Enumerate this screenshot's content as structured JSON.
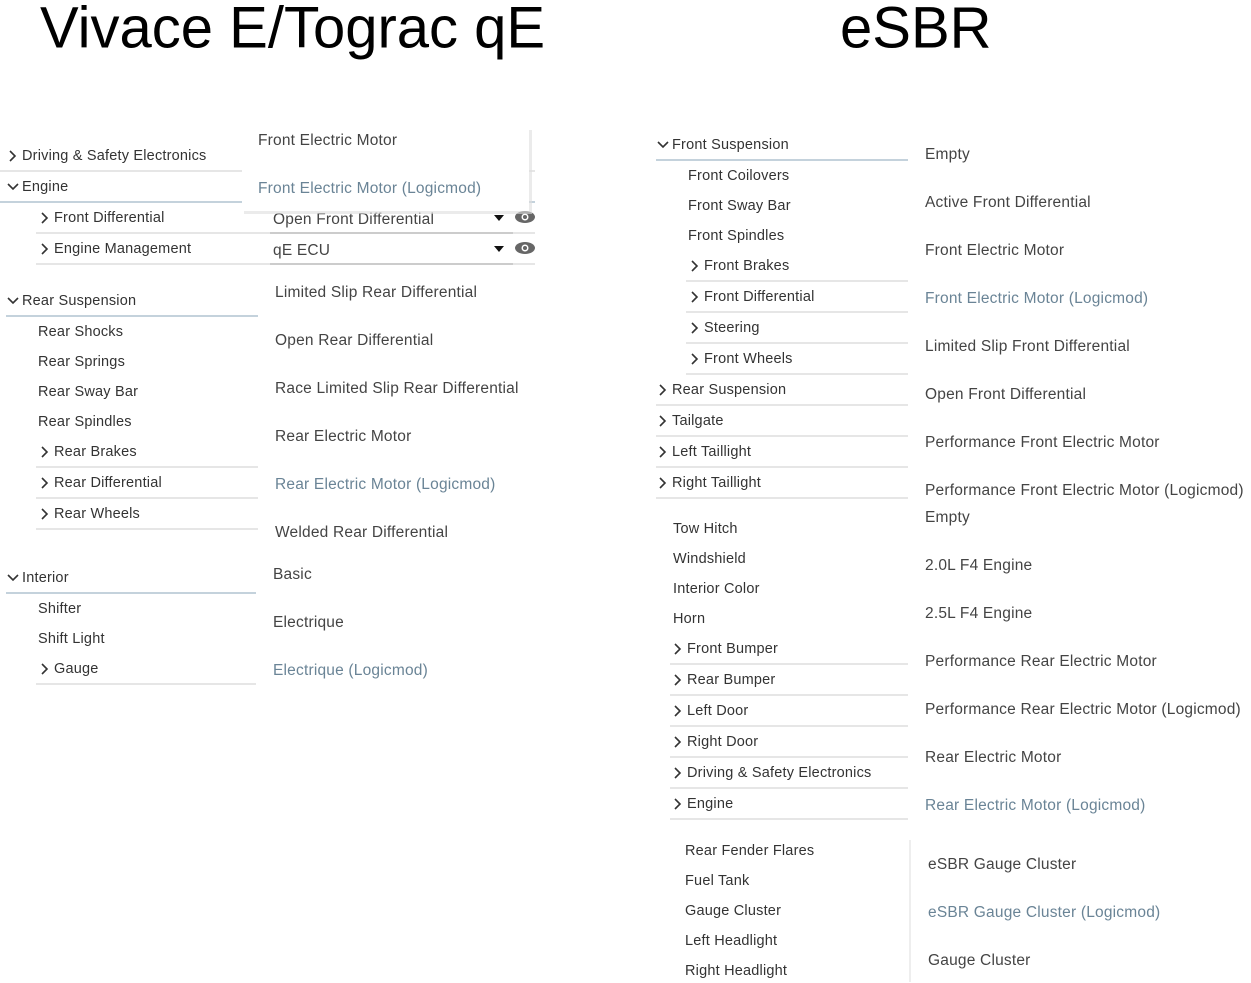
{
  "headers": [
    "Vivace E/Tograc qE",
    "eSBR"
  ],
  "panels": [
    {
      "tree": [
        {
          "label": "Driving & Safety Electronics",
          "level": 0,
          "expandable": true,
          "expanded": false
        },
        {
          "label": "Engine",
          "level": 0,
          "expandable": true,
          "expanded": true
        },
        {
          "label": "Front Differential",
          "level": 1,
          "expandable": true,
          "expanded": false,
          "selected": "Open Front Differential"
        },
        {
          "label": "Engine Management",
          "level": 1,
          "expandable": true,
          "expanded": false,
          "selected": "qE ECU"
        }
      ],
      "dropdown": [
        {
          "label": "Front Electric Motor",
          "highlighted": false
        },
        {
          "label": "Front Electric Motor (Logicmod)",
          "highlighted": true
        }
      ]
    },
    {
      "tree": [
        {
          "label": "Rear Suspension",
          "level": 0,
          "expandable": true,
          "expanded": true
        },
        {
          "label": "Rear Shocks",
          "level": 1,
          "expandable": false,
          "expanded": false
        },
        {
          "label": "Rear Springs",
          "level": 1,
          "expandable": false,
          "expanded": false
        },
        {
          "label": "Rear Sway Bar",
          "level": 1,
          "expandable": false,
          "expanded": false
        },
        {
          "label": "Rear Spindles",
          "level": 1,
          "expandable": false,
          "expanded": false
        },
        {
          "label": "Rear Brakes",
          "level": 1,
          "expandable": true,
          "expanded": false
        },
        {
          "label": "Rear Differential",
          "level": 1,
          "expandable": true,
          "expanded": false
        },
        {
          "label": "Rear Wheels",
          "level": 1,
          "expandable": true,
          "expanded": false
        }
      ],
      "options": [
        {
          "label": "Limited Slip Rear Differential",
          "highlighted": false
        },
        {
          "label": "Open Rear Differential",
          "highlighted": false
        },
        {
          "label": "Race Limited Slip Rear Differential",
          "highlighted": false
        },
        {
          "label": "Rear Electric Motor",
          "highlighted": false
        },
        {
          "label": "Rear Electric Motor (Logicmod)",
          "highlighted": true
        },
        {
          "label": "Welded Rear Differential",
          "highlighted": false
        }
      ]
    },
    {
      "tree": [
        {
          "label": "Interior",
          "level": 0,
          "expandable": true,
          "expanded": true
        },
        {
          "label": "Shifter",
          "level": 1,
          "expandable": false,
          "expanded": false
        },
        {
          "label": "Shift Light",
          "level": 1,
          "expandable": false,
          "expanded": false
        },
        {
          "label": "Gauge",
          "level": 1,
          "expandable": true,
          "expanded": false
        }
      ],
      "options": [
        {
          "label": "Basic",
          "highlighted": false
        },
        {
          "label": "Electrique",
          "highlighted": false
        },
        {
          "label": "Electrique (Logicmod)",
          "highlighted": true
        }
      ]
    },
    {
      "tree": [
        {
          "label": "Front Suspension",
          "level": 0,
          "expandable": true,
          "expanded": true
        },
        {
          "label": "Front Coilovers",
          "level": 1,
          "expandable": false,
          "expanded": false
        },
        {
          "label": "Front Sway Bar",
          "level": 1,
          "expandable": false,
          "expanded": false
        },
        {
          "label": "Front Spindles",
          "level": 1,
          "expandable": false,
          "expanded": false
        },
        {
          "label": "Front Brakes",
          "level": 1,
          "expandable": true,
          "expanded": false
        },
        {
          "label": "Front Differential",
          "level": 1,
          "expandable": true,
          "expanded": false
        },
        {
          "label": "Steering",
          "level": 1,
          "expandable": true,
          "expanded": false
        },
        {
          "label": "Front Wheels",
          "level": 1,
          "expandable": true,
          "expanded": false
        },
        {
          "label": "Rear Suspension",
          "level": 0,
          "expandable": true,
          "expanded": false
        },
        {
          "label": "Tailgate",
          "level": 0,
          "expandable": true,
          "expanded": false
        },
        {
          "label": "Left Taillight",
          "level": 0,
          "expandable": true,
          "expanded": false
        },
        {
          "label": "Right Taillight",
          "level": 0,
          "expandable": true,
          "expanded": false
        }
      ],
      "options": [
        {
          "label": "Empty",
          "highlighted": false
        },
        {
          "label": "Active Front Differential",
          "highlighted": false
        },
        {
          "label": "Front Electric Motor",
          "highlighted": false
        },
        {
          "label": "Front Electric Motor (Logicmod)",
          "highlighted": true
        },
        {
          "label": "Limited Slip Front Differential",
          "highlighted": false
        },
        {
          "label": "Open Front Differential",
          "highlighted": false
        },
        {
          "label": "Performance Front Electric Motor",
          "highlighted": false
        },
        {
          "label": "Performance Front Electric Motor (Logicmod)",
          "highlighted": false
        }
      ]
    },
    {
      "tree": [
        {
          "label": "Tow Hitch",
          "level": 0,
          "expandable": false,
          "expanded": false
        },
        {
          "label": "Windshield",
          "level": 0,
          "expandable": false,
          "expanded": false
        },
        {
          "label": "Interior Color",
          "level": 0,
          "expandable": false,
          "expanded": false
        },
        {
          "label": "Horn",
          "level": 0,
          "expandable": false,
          "expanded": false
        },
        {
          "label": "Front Bumper",
          "level": 0,
          "expandable": true,
          "expanded": false
        },
        {
          "label": "Rear Bumper",
          "level": 0,
          "expandable": true,
          "expanded": false
        },
        {
          "label": "Left Door",
          "level": 0,
          "expandable": true,
          "expanded": false
        },
        {
          "label": "Right Door",
          "level": 0,
          "expandable": true,
          "expanded": false
        },
        {
          "label": "Driving & Safety Electronics",
          "level": 0,
          "expandable": true,
          "expanded": false
        },
        {
          "label": "Engine",
          "level": 0,
          "expandable": true,
          "expanded": false
        }
      ],
      "options": [
        {
          "label": "Empty",
          "highlighted": false
        },
        {
          "label": "2.0L F4 Engine",
          "highlighted": false
        },
        {
          "label": "2.5L F4 Engine",
          "highlighted": false
        },
        {
          "label": "Performance Rear Electric Motor",
          "highlighted": false
        },
        {
          "label": "Performance Rear Electric Motor (Logicmod)",
          "highlighted": false
        },
        {
          "label": "Rear Electric Motor",
          "highlighted": false
        },
        {
          "label": "Rear Electric Motor (Logicmod)",
          "highlighted": true
        }
      ]
    },
    {
      "tree": [
        {
          "label": "Rear Fender Flares",
          "level": 0,
          "expandable": false,
          "expanded": false
        },
        {
          "label": "Fuel Tank",
          "level": 0,
          "expandable": false,
          "expanded": false
        },
        {
          "label": "Gauge Cluster",
          "level": 0,
          "expandable": false,
          "expanded": false
        },
        {
          "label": "Left Headlight",
          "level": 0,
          "expandable": false,
          "expanded": false
        },
        {
          "label": "Right Headlight",
          "level": 0,
          "expandable": false,
          "expanded": false
        }
      ],
      "options": [
        {
          "label": "eSBR Gauge Cluster",
          "highlighted": false
        },
        {
          "label": "eSBR Gauge Cluster (Logicmod)",
          "highlighted": true
        },
        {
          "label": "Gauge Cluster",
          "highlighted": false
        }
      ]
    }
  ]
}
